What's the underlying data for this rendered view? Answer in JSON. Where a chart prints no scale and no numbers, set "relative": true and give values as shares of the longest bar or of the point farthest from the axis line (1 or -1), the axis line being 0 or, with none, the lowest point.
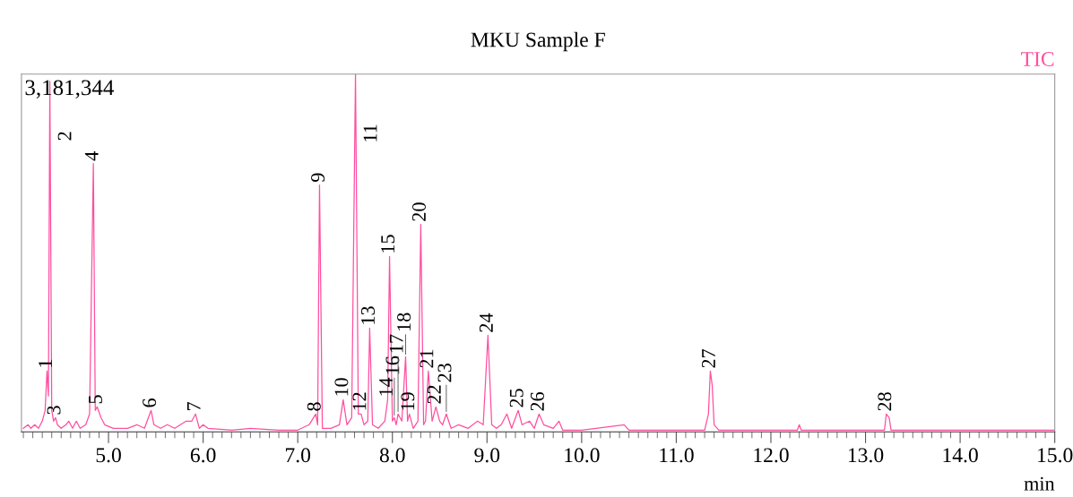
{
  "chart_data": {
    "type": "line",
    "title": "MKU Sample F",
    "xlabel": "min",
    "relative": true,
    "grid": false,
    "legend": false,
    "marker": "none",
    "line_style": "solid",
    "xlim": [
      4.08,
      15.0
    ],
    "xticks": [
      {
        "value": 5,
        "label": "5.0"
      },
      {
        "value": 6,
        "label": "6.0"
      },
      {
        "value": 7,
        "label": "7.0"
      },
      {
        "value": 8,
        "label": "8.0"
      },
      {
        "value": 9,
        "label": "9.0"
      },
      {
        "value": 10,
        "label": "10.0"
      },
      {
        "value": 11,
        "label": "11.0"
      },
      {
        "value": 12,
        "label": "12.0"
      },
      {
        "value": 13,
        "label": "13.0"
      },
      {
        "value": 14,
        "label": "14.0"
      },
      {
        "value": 15,
        "label": "15.0"
      }
    ],
    "series": [
      {
        "name": "TIC",
        "color": "#ff4fa0",
        "x": [
          4.1,
          4.15,
          4.18,
          4.22,
          4.26,
          4.3,
          4.33,
          4.35,
          4.365,
          4.38,
          4.4,
          4.42,
          4.44,
          4.46,
          4.5,
          4.55,
          4.58,
          4.62,
          4.66,
          4.7,
          4.76,
          4.8,
          4.84,
          4.86,
          4.88,
          4.92,
          4.96,
          5.05,
          5.2,
          5.3,
          5.38,
          5.45,
          5.48,
          5.55,
          5.62,
          5.7,
          5.76,
          5.82,
          5.88,
          5.92,
          5.96,
          6.0,
          6.05,
          6.3,
          6.5,
          6.8,
          7.0,
          7.12,
          7.19,
          7.21,
          7.23,
          7.26,
          7.35,
          7.44,
          7.48,
          7.52,
          7.57,
          7.61,
          7.64,
          7.67,
          7.7,
          7.74,
          7.76,
          7.79,
          7.85,
          7.92,
          7.95,
          7.97,
          8.0,
          8.02,
          8.04,
          8.06,
          8.1,
          8.14,
          8.16,
          8.18,
          8.22,
          8.27,
          8.3,
          8.33,
          8.35,
          8.38,
          8.42,
          8.46,
          8.5,
          8.53,
          8.57,
          8.62,
          8.7,
          8.8,
          8.9,
          8.96,
          9.01,
          9.05,
          9.1,
          9.15,
          9.21,
          9.26,
          9.33,
          9.37,
          9.45,
          9.5,
          9.55,
          9.6,
          9.7,
          9.76,
          9.8,
          10.0,
          10.45,
          10.5,
          11.0,
          11.3,
          11.34,
          11.36,
          11.38,
          11.4,
          11.45,
          12.0,
          12.28,
          12.3,
          12.32,
          13.0,
          13.2,
          13.22,
          13.25,
          13.27,
          14.0,
          15.0
        ],
        "values": [
          0.01,
          0.02,
          0.01,
          0.02,
          0.01,
          0.03,
          0.06,
          0.17,
          0.1,
          0.98,
          0.06,
          0.03,
          0.04,
          0.02,
          0.01,
          0.02,
          0.03,
          0.01,
          0.03,
          0.01,
          0.02,
          0.05,
          0.75,
          0.06,
          0.07,
          0.04,
          0.02,
          0.01,
          0.01,
          0.02,
          0.01,
          0.06,
          0.02,
          0.01,
          0.02,
          0.01,
          0.02,
          0.03,
          0.03,
          0.05,
          0.01,
          0.02,
          0.01,
          0.005,
          0.01,
          0.005,
          0.005,
          0.02,
          0.05,
          0.02,
          0.69,
          0.01,
          0.01,
          0.02,
          0.09,
          0.02,
          0.04,
          1.0,
          0.05,
          0.05,
          0.02,
          0.03,
          0.29,
          0.02,
          0.01,
          0.03,
          0.09,
          0.49,
          0.03,
          0.04,
          0.02,
          0.05,
          0.03,
          0.21,
          0.03,
          0.05,
          0.01,
          0.03,
          0.58,
          0.02,
          0.03,
          0.17,
          0.03,
          0.07,
          0.03,
          0.02,
          0.05,
          0.01,
          0.02,
          0.01,
          0.03,
          0.02,
          0.27,
          0.02,
          0.01,
          0.02,
          0.05,
          0.01,
          0.06,
          0.02,
          0.03,
          0.01,
          0.05,
          0.02,
          0.01,
          0.03,
          0.005,
          0.005,
          0.02,
          0.005,
          0.005,
          0.005,
          0.05,
          0.17,
          0.13,
          0.02,
          0.005,
          0.005,
          0.005,
          0.02,
          0.005,
          0.005,
          0.005,
          0.05,
          0.04,
          0.005,
          0.005,
          0.005
        ]
      }
    ],
    "annotations": [
      "3,181,344",
      {
        "text": "1",
        "x": 4.35,
        "y": 0.17
      },
      {
        "text": "2",
        "x": 4.38,
        "y": 0.98
      },
      {
        "text": "3",
        "x": 4.44,
        "y": 0.04
      },
      {
        "text": "4",
        "x": 4.84,
        "y": 0.75
      },
      {
        "text": "5",
        "x": 4.88,
        "y": 0.07
      },
      {
        "text": "6",
        "x": 5.45,
        "y": 0.06
      },
      {
        "text": "7",
        "x": 5.92,
        "y": 0.05
      },
      {
        "text": "8",
        "x": 7.19,
        "y": 0.05
      },
      {
        "text": "9",
        "x": 7.23,
        "y": 0.69
      },
      {
        "text": "10",
        "x": 7.48,
        "y": 0.09
      },
      {
        "text": "11",
        "x": 7.61,
        "y": 1.0
      },
      {
        "text": "12",
        "x": 7.67,
        "y": 0.05
      },
      {
        "text": "13",
        "x": 7.76,
        "y": 0.29
      },
      {
        "text": "14",
        "x": 7.95,
        "y": 0.09
      },
      {
        "text": "15",
        "x": 7.97,
        "y": 0.49
      },
      {
        "text": "16",
        "x": 8.02,
        "y": 0.04
      },
      {
        "text": "17",
        "x": 8.06,
        "y": 0.05
      },
      {
        "text": "18",
        "x": 8.14,
        "y": 0.21
      },
      {
        "text": "19",
        "x": 8.18,
        "y": 0.05
      },
      {
        "text": "20",
        "x": 8.3,
        "y": 0.58
      },
      {
        "text": "21",
        "x": 8.38,
        "y": 0.17
      },
      {
        "text": "22",
        "x": 8.46,
        "y": 0.07
      },
      {
        "text": "23",
        "x": 8.57,
        "y": 0.05
      },
      {
        "text": "24",
        "x": 9.01,
        "y": 0.27
      },
      {
        "text": "25",
        "x": 9.33,
        "y": 0.06
      },
      {
        "text": "26",
        "x": 9.55,
        "y": 0.05
      },
      {
        "text": "27",
        "x": 11.36,
        "y": 0.17
      },
      {
        "text": "28",
        "x": 13.22,
        "y": 0.05
      }
    ]
  }
}
